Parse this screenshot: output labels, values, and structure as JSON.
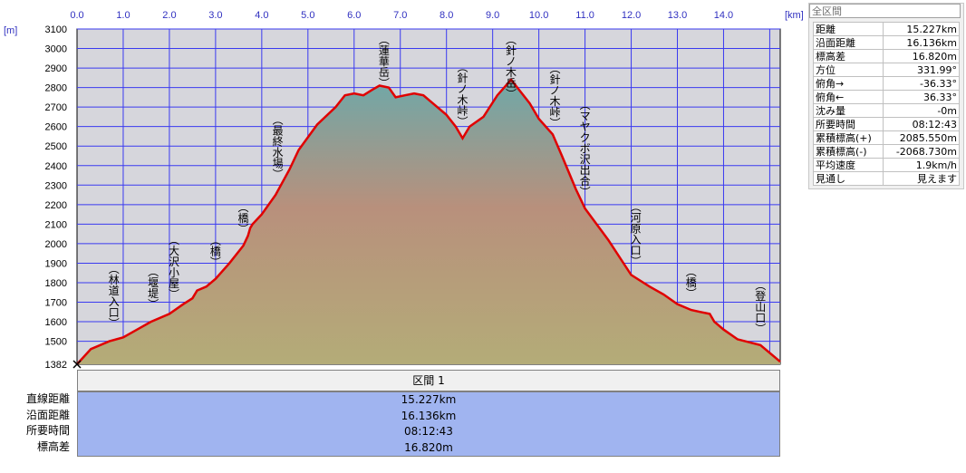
{
  "chart_data": {
    "type": "area",
    "x_unit": "[km]",
    "y_unit": "[m]",
    "xlim": [
      0,
      15.227
    ],
    "ylim": [
      1382,
      3100
    ],
    "x_ticks": [
      "0.0",
      "1.0",
      "2.0",
      "3.0",
      "4.0",
      "5.0",
      "6.0",
      "7.0",
      "8.0",
      "9.0",
      "10.0",
      "11.0",
      "12.0",
      "13.0",
      "14.0"
    ],
    "y_ticks": [
      "3100",
      "3000",
      "2900",
      "2800",
      "2700",
      "2600",
      "2500",
      "2400",
      "2300",
      "2200",
      "2100",
      "2000",
      "1900",
      "1800",
      "1700",
      "1600",
      "1500",
      "1382"
    ],
    "grid": true,
    "colors": {
      "profile_line": "#e00000",
      "grid": "#3030ff",
      "plot_bg": "#d8d8e0",
      "fill_top": "#7fa8a0",
      "fill_mid": "#b4907a",
      "fill_bottom": "#b0a878"
    },
    "x": [
      0,
      0.3,
      0.7,
      1.0,
      1.3,
      1.6,
      2.0,
      2.3,
      2.5,
      2.6,
      2.8,
      3.0,
      3.3,
      3.6,
      3.7,
      3.75,
      3.8,
      4.0,
      4.3,
      4.6,
      4.8,
      5.2,
      5.6,
      5.8,
      6.0,
      6.2,
      6.4,
      6.55,
      6.75,
      6.9,
      7.1,
      7.3,
      7.5,
      7.7,
      8.0,
      8.2,
      8.35,
      8.5,
      8.8,
      9.1,
      9.4,
      9.6,
      9.8,
      10.0,
      10.3,
      10.5,
      10.8,
      11.0,
      11.5,
      12.0,
      12.4,
      12.7,
      13.0,
      13.3,
      13.5,
      13.7,
      13.8,
      14.0,
      14.3,
      14.8,
      15.227
    ],
    "y": [
      1382,
      1460,
      1500,
      1520,
      1560,
      1600,
      1640,
      1690,
      1720,
      1760,
      1780,
      1820,
      1900,
      1990,
      2040,
      2080,
      2100,
      2150,
      2250,
      2380,
      2480,
      2610,
      2700,
      2760,
      2770,
      2760,
      2790,
      2810,
      2800,
      2750,
      2760,
      2770,
      2760,
      2720,
      2660,
      2600,
      2540,
      2600,
      2650,
      2760,
      2840,
      2780,
      2720,
      2640,
      2560,
      2450,
      2280,
      2180,
      2020,
      1840,
      1780,
      1740,
      1690,
      1660,
      1650,
      1640,
      1600,
      1560,
      1510,
      1480,
      1395
    ],
    "annotations": [
      {
        "label": "(林道入口)",
        "x": 0.8
      },
      {
        "label": "(堰堤)",
        "x": 1.65
      },
      {
        "label": "(大沢小屋)",
        "x": 2.1
      },
      {
        "label": "(橋)",
        "x": 3.0
      },
      {
        "label": "(橋)",
        "x": 3.6
      },
      {
        "label": "(最終水場)",
        "x": 4.35
      },
      {
        "label": "(蓮華岳)",
        "x": 6.65
      },
      {
        "label": "(針ノ木峠)",
        "x": 8.35
      },
      {
        "label": "(針ノ木岳)",
        "x": 9.4
      },
      {
        "label": "(針ノ木峠)",
        "x": 10.35
      },
      {
        "label": "(マヤクボ沢出合)",
        "x": 11.0
      },
      {
        "label": "(河原入口)",
        "x": 12.1
      },
      {
        "label": "(橋)",
        "x": 13.3
      },
      {
        "label": "(登山口)",
        "x": 14.8
      }
    ]
  },
  "info_panel": {
    "title": "全区間",
    "rows": [
      {
        "label": "距離",
        "value": "15.227km"
      },
      {
        "label": "沿面距離",
        "value": "16.136km"
      },
      {
        "label": "標高差",
        "value": "16.820m"
      },
      {
        "label": "方位",
        "value": "331.99°"
      },
      {
        "label": "俯角→",
        "value": "-36.33°"
      },
      {
        "label": "俯角←",
        "value": "36.33°"
      },
      {
        "label": "沈み量",
        "value": "-0m"
      },
      {
        "label": "所要時間",
        "value": "08:12:43"
      },
      {
        "label": "累積標高(+)",
        "value": "2085.550m"
      },
      {
        "label": "累積標高(-)",
        "value": "-2068.730m"
      },
      {
        "label": "平均速度",
        "value": "1.9km/h"
      },
      {
        "label": "見通し",
        "value": "見えます"
      }
    ]
  },
  "summary": {
    "section_title": "区間 1",
    "labels": [
      "直線距離",
      "沿面距離",
      "所要時間",
      "標高差"
    ],
    "values": [
      "15.227km",
      "16.136km",
      "08:12:43",
      "16.820m"
    ]
  }
}
